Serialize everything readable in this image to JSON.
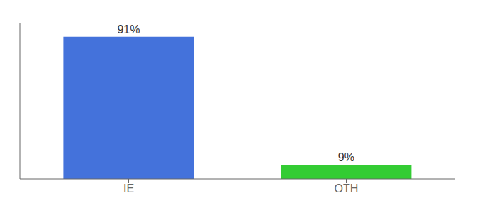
{
  "chart_data": {
    "type": "bar",
    "categories": [
      "IE",
      "OTH"
    ],
    "values": [
      91,
      9
    ],
    "value_labels": [
      "91%",
      "9%"
    ],
    "colors": [
      "#4472db",
      "#33cc33"
    ],
    "ylim": [
      0,
      100
    ],
    "data_labels": true,
    "tick_labels": "x",
    "grid": false
  }
}
